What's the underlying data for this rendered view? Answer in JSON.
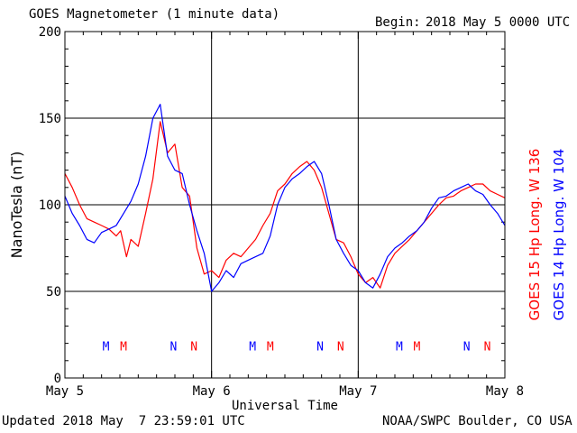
{
  "header": {
    "title": "GOES Magnetometer (1 minute data)",
    "begin_label": "Begin:",
    "begin_value": "2018 May 5 0000 UTC"
  },
  "footer": {
    "updated": "Updated 2018 May  7 23:59:01 UTC",
    "source": "NOAA/SWPC Boulder, CO USA"
  },
  "chart_data": {
    "type": "line",
    "title": "GOES Magnetometer (1 minute data)",
    "xlabel": "Universal Time",
    "ylabel": "NanoTesla (nT)",
    "ylim": [
      0,
      200
    ],
    "xlim_days": [
      0,
      3
    ],
    "x_ticks": [
      {
        "day": 0,
        "label": "May 5"
      },
      {
        "day": 1,
        "label": "May 6"
      },
      {
        "day": 2,
        "label": "May 7"
      },
      {
        "day": 3,
        "label": "May 8"
      }
    ],
    "y_ticks": [
      0,
      50,
      100,
      150,
      200
    ],
    "grid": true,
    "x_unit": "days since 2018 May 5 0000 UTC",
    "series": [
      {
        "name": "GOES 15 Hp  Long. W 136",
        "color": "#ff0000",
        "x": [
          0.0,
          0.05,
          0.1,
          0.15,
          0.2,
          0.25,
          0.3,
          0.35,
          0.38,
          0.42,
          0.45,
          0.5,
          0.55,
          0.6,
          0.65,
          0.7,
          0.75,
          0.8,
          0.85,
          0.9,
          0.95,
          1.0,
          1.05,
          1.1,
          1.15,
          1.2,
          1.25,
          1.3,
          1.35,
          1.4,
          1.45,
          1.5,
          1.55,
          1.6,
          1.65,
          1.7,
          1.75,
          1.8,
          1.85,
          1.9,
          1.95,
          2.0,
          2.05,
          2.1,
          2.15,
          2.2,
          2.25,
          2.3,
          2.35,
          2.4,
          2.45,
          2.5,
          2.55,
          2.6,
          2.65,
          2.7,
          2.75,
          2.8,
          2.85,
          2.9,
          2.95,
          3.0
        ],
        "y": [
          118,
          110,
          100,
          92,
          90,
          88,
          86,
          82,
          85,
          70,
          80,
          76,
          95,
          115,
          148,
          130,
          135,
          110,
          105,
          75,
          60,
          62,
          58,
          68,
          72,
          70,
          75,
          80,
          88,
          95,
          108,
          112,
          118,
          122,
          125,
          120,
          110,
          95,
          80,
          78,
          70,
          60,
          55,
          58,
          52,
          65,
          72,
          76,
          80,
          85,
          90,
          95,
          100,
          104,
          105,
          108,
          110,
          112,
          112,
          108,
          106,
          104
        ]
      },
      {
        "name": "GOES 14 Hp  Long. W 104",
        "color": "#0000ff",
        "x": [
          0.0,
          0.05,
          0.1,
          0.15,
          0.2,
          0.25,
          0.3,
          0.35,
          0.4,
          0.45,
          0.5,
          0.55,
          0.6,
          0.65,
          0.7,
          0.75,
          0.8,
          0.85,
          0.9,
          0.95,
          1.0,
          1.05,
          1.1,
          1.15,
          1.2,
          1.25,
          1.3,
          1.35,
          1.4,
          1.45,
          1.5,
          1.55,
          1.6,
          1.65,
          1.7,
          1.75,
          1.8,
          1.85,
          1.9,
          1.95,
          2.0,
          2.05,
          2.1,
          2.15,
          2.2,
          2.25,
          2.3,
          2.35,
          2.4,
          2.45,
          2.5,
          2.55,
          2.6,
          2.65,
          2.7,
          2.75,
          2.8,
          2.85,
          2.9,
          2.95,
          3.0
        ],
        "y": [
          105,
          95,
          88,
          80,
          78,
          84,
          86,
          88,
          95,
          102,
          112,
          128,
          150,
          158,
          128,
          120,
          118,
          100,
          85,
          72,
          50,
          55,
          62,
          58,
          66,
          68,
          70,
          72,
          82,
          100,
          110,
          115,
          118,
          122,
          125,
          118,
          100,
          80,
          72,
          65,
          62,
          55,
          52,
          60,
          70,
          75,
          78,
          82,
          85,
          90,
          98,
          104,
          105,
          108,
          110,
          112,
          108,
          106,
          100,
          95,
          88
        ]
      }
    ],
    "markers": {
      "note": "Local midnight (M) and noon (N) markers for each satellite",
      "goes15": {
        "color": "#ff0000",
        "M": [
          0.4,
          1.4,
          2.4
        ],
        "N": [
          0.88,
          1.88,
          2.88
        ]
      },
      "goes14": {
        "color": "#0000ff",
        "M": [
          0.28,
          1.28,
          2.28
        ],
        "N": [
          0.74,
          1.74,
          2.74
        ]
      }
    }
  },
  "legend": {
    "goes15": {
      "label": "GOES 15 Hp  Long. W 136",
      "color": "#ff0000"
    },
    "goes14": {
      "label": "GOES 14 Hp  Long. W 104",
      "color": "#0000ff"
    }
  }
}
